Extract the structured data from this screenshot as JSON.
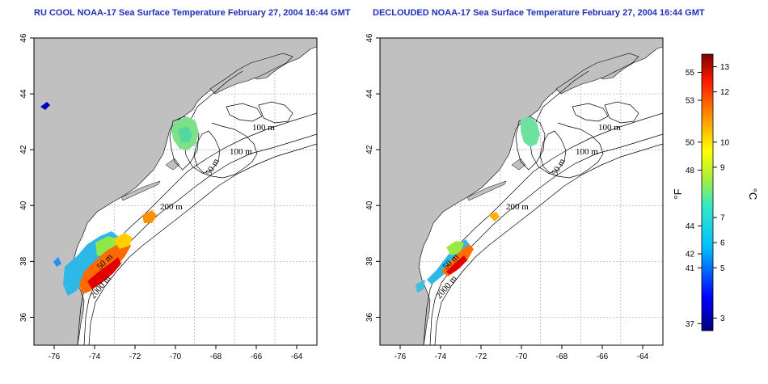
{
  "chart_data": [
    {
      "type": "heatmap",
      "title": "RU COOL NOAA-17 Sea Surface Temperature February 27, 2004 16:44 GMT",
      "xlim": [
        -77,
        -63
      ],
      "ylim": [
        35,
        46
      ],
      "xticks": [
        -76,
        -74,
        -72,
        -70,
        -68,
        -66,
        -64
      ],
      "yticks": [
        36,
        38,
        40,
        42,
        44,
        46
      ],
      "grid": true,
      "contour_labels": [
        "100 m",
        "100 m",
        "50 m",
        "200 m",
        "50 m",
        "2000 m"
      ]
    },
    {
      "type": "heatmap",
      "title": "DECLOUDED NOAA-17 Sea Surface Temperature February 27, 2004 16:44 GMT",
      "xlim": [
        -77,
        -63
      ],
      "ylim": [
        35,
        46
      ],
      "xticks": [
        -76,
        -74,
        -72,
        -70,
        -68,
        -66,
        -64
      ],
      "yticks": [
        36,
        38,
        40,
        42,
        44,
        46
      ],
      "grid": true,
      "contour_labels": [
        "100 m",
        "100 m",
        "50 m",
        "200 m",
        "50 m",
        "2000 m"
      ]
    }
  ],
  "colorbar": {
    "fahrenheit_label": "°F",
    "celsius_label": "°C",
    "fahrenheit_ticks": [
      "55",
      "53",
      "50",
      "48",
      "44",
      "42",
      "41",
      "37"
    ],
    "celsius_ticks": [
      "13",
      "12",
      "10",
      "9",
      "7",
      "6",
      "5",
      "3"
    ],
    "fahrenheit_values": [
      55,
      53,
      50,
      48,
      44,
      42,
      41,
      37
    ],
    "celsius_values": [
      13,
      12,
      10,
      9,
      7,
      6,
      5,
      3
    ],
    "range_c": [
      2.5,
      13.5
    ]
  },
  "colors": {
    "land": "#c0c0c0",
    "title": "#1f2fb8",
    "grid": "#b5b5b5"
  }
}
